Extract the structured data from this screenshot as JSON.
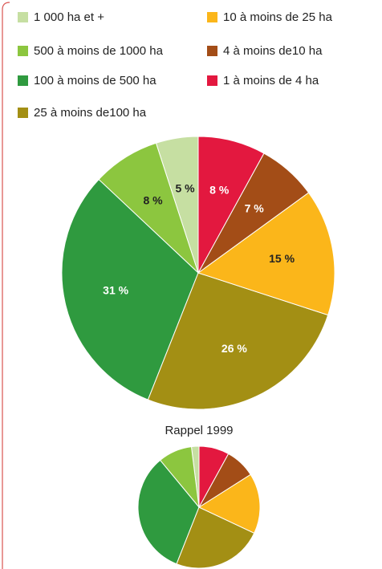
{
  "chart_data": [
    {
      "type": "pie",
      "categories": [
        "1 000 ha et +",
        "500 à moins de 1000 ha",
        "100 à moins de 500 ha",
        "25 à moins de100 ha",
        "10 à moins de 25 ha",
        "4 à moins de10 ha",
        "1 à moins de 4 ha"
      ],
      "values": [
        5,
        8,
        31,
        26,
        15,
        7,
        8
      ],
      "value_labels": [
        "5 %",
        "8 %",
        "31 %",
        "26 %",
        "15 %",
        "7 %",
        "8 %"
      ],
      "colors": [
        "#c6dfa2",
        "#8cc63f",
        "#2f9a3f",
        "#a38f14",
        "#fbb61a",
        "#a34d17",
        "#e3183f"
      ]
    },
    {
      "type": "pie",
      "title": "Rappel 1999",
      "values": [
        2,
        9,
        33,
        24,
        16,
        8,
        8
      ],
      "colors": [
        "#c6dfa2",
        "#8cc63f",
        "#2f9a3f",
        "#a38f14",
        "#fbb61a",
        "#a34d17",
        "#e3183f"
      ]
    }
  ]
}
